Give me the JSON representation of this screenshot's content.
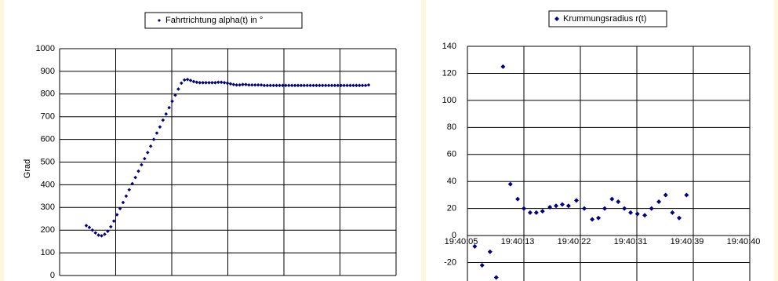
{
  "chart_data": [
    {
      "type": "scatter",
      "legend": "Fahrtrichtung alpha(t) in °",
      "y_label": "Grad",
      "color": "#000080",
      "ylim": [
        0,
        1000
      ],
      "yticks": [
        0,
        100,
        200,
        300,
        400,
        500,
        600,
        700,
        800,
        900,
        1000
      ],
      "grid": true,
      "values": [
        220,
        212,
        200,
        188,
        178,
        175,
        182,
        195,
        215,
        240,
        268,
        295,
        322,
        350,
        378,
        405,
        432,
        460,
        488,
        515,
        542,
        570,
        600,
        628,
        655,
        685,
        712,
        740,
        768,
        795,
        822,
        848,
        862,
        864,
        860,
        855,
        852,
        850,
        850,
        850,
        850,
        850,
        850,
        852,
        852,
        850,
        848,
        845,
        842,
        840,
        840,
        842,
        842,
        840,
        840,
        840,
        840,
        840,
        838,
        838,
        838,
        838,
        838,
        838,
        838,
        838,
        838,
        838,
        838,
        838,
        838,
        838,
        838,
        838,
        838,
        838,
        838,
        838,
        838,
        838,
        838,
        838,
        838,
        838,
        838,
        838,
        838,
        838,
        838,
        838,
        838,
        838,
        840
      ]
    },
    {
      "type": "scatter",
      "legend": "Krummungsradius r(t)",
      "color": "#000080",
      "xlim": [
        0,
        5
      ],
      "ylim": [
        -40,
        140
      ],
      "yticks": [
        -20,
        0,
        20,
        40,
        60,
        80,
        100,
        120,
        140
      ],
      "grid": true,
      "xticks": [
        {
          "value": 0,
          "label": "19:40:05"
        },
        {
          "value": 1,
          "label": "19:40:13"
        },
        {
          "value": 2,
          "label": "19:40:22"
        },
        {
          "value": 3,
          "label": "19:40:31"
        },
        {
          "value": 4,
          "label": "19:40:39"
        },
        {
          "value": 5,
          "label": "19:40:40"
        }
      ],
      "x": [
        0.13,
        0.26,
        0.4,
        0.51,
        0.63,
        0.76,
        0.89,
        1.0,
        1.11,
        1.22,
        1.33,
        1.46,
        1.57,
        1.68,
        1.79,
        1.93,
        2.07,
        2.21,
        2.32,
        2.43,
        2.56,
        2.67,
        2.78,
        2.89,
        3.01,
        3.14,
        3.26,
        3.39,
        3.51,
        3.63,
        3.75,
        3.88
      ],
      "values": [
        -8,
        -22,
        -12,
        -31,
        125,
        38,
        27,
        20,
        17,
        17,
        18,
        21,
        22,
        23,
        22,
        26,
        20,
        12,
        13,
        20,
        27,
        25,
        20,
        17,
        16,
        15,
        20,
        25,
        30,
        17,
        13,
        30
      ]
    }
  ]
}
